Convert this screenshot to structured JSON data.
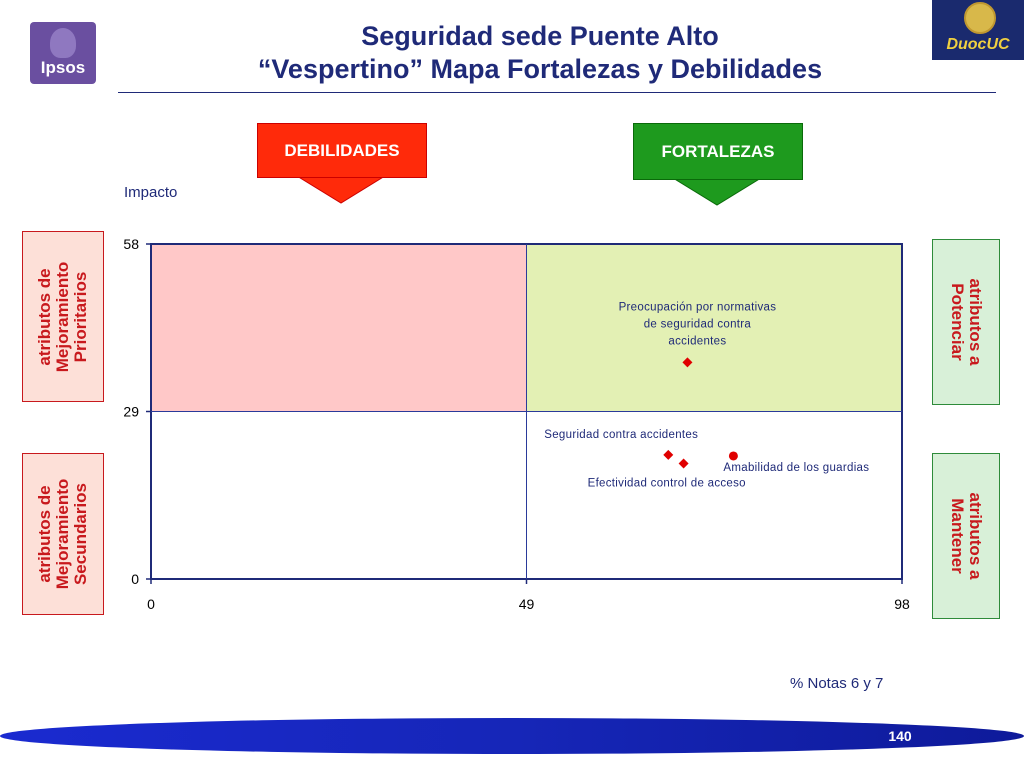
{
  "header": {
    "title_line1": "Seguridad sede Puente Alto",
    "title_line2": "“Vespertino” Mapa Fortalezas y Debilidades"
  },
  "logos": {
    "left_text": "Ipsos",
    "right_text": "DuocUC"
  },
  "callouts": {
    "debilidades": "DEBILIDADES",
    "fortalezas": "FORTALEZAS"
  },
  "side_labels": {
    "top_left": [
      "atributos de",
      "Mejoramiento",
      "Prioritarios"
    ],
    "bottom_left": [
      "atributos de",
      "Mejoramiento",
      "Secundarios"
    ],
    "top_right": [
      "atributos a",
      "Potenciar"
    ],
    "bottom_right": [
      "atributos a",
      "Mantener"
    ]
  },
  "colors": {
    "title": "#1f2a78",
    "debilidades": "#ff2a0a",
    "fortalezas": "#1e9a1e",
    "quadrant_top_left": "#ffc8c8",
    "quadrant_top_right": "#e3f0b4",
    "marker": "#e00000",
    "side_text": "#c8191d"
  },
  "chart_data": {
    "type": "scatter",
    "xlabel": "% Notas 6 y 7",
    "ylabel": "Impacto",
    "xlim": [
      0,
      98
    ],
    "ylim": [
      0,
      58
    ],
    "x_ticks": [
      "0",
      "49",
      "98"
    ],
    "y_ticks": [
      "0",
      "29",
      "58"
    ],
    "x_divider": 49,
    "y_divider": 29,
    "points": [
      {
        "label_lines": [
          "Preocupación por normativas",
          "de seguridad contra",
          "accidentes"
        ],
        "x": 70,
        "y": 37.5,
        "marker": "diamond"
      },
      {
        "label_lines": [
          "Seguridad contra accidentes"
        ],
        "x": 67.5,
        "y": 21.5,
        "marker": "diamond"
      },
      {
        "label_lines": [
          "Efectividad control de acceso"
        ],
        "x": 69.5,
        "y": 20,
        "marker": "diamond"
      },
      {
        "label_lines": [
          "Amabilidad de los guardias"
        ],
        "x": 76,
        "y": 21.3,
        "marker": "circle"
      }
    ]
  },
  "footer": {
    "page_number": "140"
  }
}
